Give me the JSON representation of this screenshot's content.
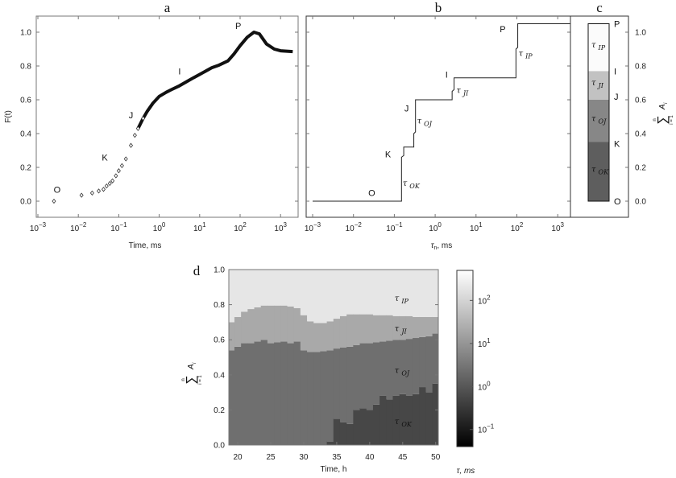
{
  "chart_data": [
    {
      "panel": "a",
      "type": "scatter",
      "title": "a",
      "xlabel": "Time, ms",
      "ylabel": "F(t)",
      "xscale": "log",
      "xlim": [
        0.00091,
        2900
      ],
      "ylim": [
        -0.1,
        1.1
      ],
      "x_tick_exponents": [
        -3,
        -2,
        -1,
        0,
        1,
        2,
        3
      ],
      "y_ticks": [
        "0.0",
        "0.2",
        "0.4",
        "0.6",
        "0.8",
        "1.0"
      ],
      "x": [
        0.0025,
        0.012,
        0.022,
        0.032,
        0.042,
        0.05,
        0.06,
        0.07,
        0.085,
        0.1,
        0.12,
        0.15,
        0.2,
        0.25,
        0.3,
        0.4,
        0.5,
        0.7,
        1,
        1.5,
        2,
        3,
        5,
        7,
        10,
        20,
        30,
        50,
        70,
        100,
        150,
        220,
        300,
        450,
        700,
        1000,
        2000
      ],
      "y": [
        0.0,
        0.035,
        0.048,
        0.06,
        0.07,
        0.09,
        0.105,
        0.12,
        0.15,
        0.18,
        0.21,
        0.25,
        0.33,
        0.39,
        0.43,
        0.49,
        0.53,
        0.58,
        0.62,
        0.645,
        0.66,
        0.68,
        0.71,
        0.73,
        0.75,
        0.79,
        0.805,
        0.83,
        0.87,
        0.92,
        0.97,
        1.0,
        0.99,
        0.93,
        0.9,
        0.89,
        0.885
      ],
      "annotations": [
        {
          "text": "O",
          "x": 0.003,
          "y": 0.05
        },
        {
          "text": "K",
          "x": 0.045,
          "y": 0.24
        },
        {
          "text": "J",
          "x": 0.2,
          "y": 0.49
        },
        {
          "text": "I",
          "x": 3.2,
          "y": 0.75
        },
        {
          "text": "P",
          "x": 90,
          "y": 1.02
        }
      ]
    },
    {
      "panel": "b",
      "type": "line",
      "title": "b",
      "xlabel": "τ",
      "xlabel_sub": "n",
      "xlabel_unit": ", ms",
      "xscale": "log",
      "xlim": [
        0.00069,
        2900
      ],
      "ylim": [
        -0.1,
        1.1
      ],
      "x_tick_exponents": [
        -3,
        -2,
        -1,
        0,
        1,
        2,
        3
      ],
      "step_x": [
        0.001,
        0.15,
        0.15,
        0.17,
        0.17,
        0.3,
        0.3,
        0.33,
        0.33,
        2.6,
        2.6,
        2.9,
        2.9,
        95,
        95,
        105,
        105,
        2000
      ],
      "step_y": [
        0.0,
        0.0,
        0.26,
        0.27,
        0.32,
        0.32,
        0.4,
        0.41,
        0.6,
        0.6,
        0.65,
        0.66,
        0.73,
        0.73,
        0.9,
        0.91,
        1.05,
        1.05
      ],
      "annotations": [
        {
          "text": "O",
          "x": 0.028,
          "y": 0.03
        },
        {
          "text": "K",
          "x": 0.07,
          "y": 0.26
        },
        {
          "text": "J",
          "x": 0.2,
          "y": 0.53
        },
        {
          "text": "I",
          "x": 1.9,
          "y": 0.73
        },
        {
          "text": "P",
          "x": 45,
          "y": 1.0
        }
      ],
      "tau_labels": [
        {
          "sub": "OK",
          "x": 0.16,
          "y": 0.09
        },
        {
          "sub": "OJ",
          "x": 0.36,
          "y": 0.46
        },
        {
          "sub": "JI",
          "x": 3.3,
          "y": 0.64
        },
        {
          "sub": "IP",
          "x": 110,
          "y": 0.86
        }
      ]
    },
    {
      "panel": "c",
      "type": "bar",
      "title": "c",
      "ylabel": "Σ A_i (i=1..n)",
      "ylabel_parts": {
        "sum": "∑",
        "top": "n",
        "bottom": "i = 1",
        "term": "A",
        "term_sub": "i"
      },
      "ylim": [
        -0.1,
        1.1
      ],
      "y_ticks": [
        "0.0",
        "0.2",
        "0.4",
        "0.6",
        "0.8",
        "1.0"
      ],
      "bands": [
        {
          "sub": "OK",
          "from": 0.0,
          "to": 0.35,
          "color": "#5e5e5e"
        },
        {
          "sub": "OJ",
          "from": 0.35,
          "to": 0.6,
          "color": "#878787"
        },
        {
          "sub": "JI",
          "from": 0.6,
          "to": 0.77,
          "color": "#c2c2c2"
        },
        {
          "sub": "IP",
          "from": 0.77,
          "to": 1.05,
          "color": "#fbfbfb"
        }
      ],
      "phase_labels": [
        {
          "text": "O",
          "y": 0.0
        },
        {
          "text": "K",
          "y": 0.34
        },
        {
          "text": "J",
          "y": 0.62
        },
        {
          "text": "I",
          "y": 0.77
        },
        {
          "text": "P",
          "y": 1.05
        }
      ]
    },
    {
      "panel": "d",
      "type": "heatmap",
      "title": "d",
      "xlabel": "Time, h",
      "ylabel_parts": {
        "sum": "∑",
        "top": "n",
        "bottom": "i = 1",
        "term": "A",
        "term_sub": "i"
      },
      "xlim": [
        18.65,
        50.4
      ],
      "ylim": [
        0,
        1
      ],
      "x_ticks": [
        20,
        25,
        30,
        35,
        40,
        45,
        50
      ],
      "y_ticks": [
        "0.0",
        "0.2",
        "0.4",
        "0.6",
        "0.8",
        "1.0"
      ],
      "time_h": [
        19,
        20,
        21,
        22,
        23,
        24,
        25,
        26,
        27,
        28,
        29,
        30,
        31,
        32,
        33,
        34,
        35,
        36,
        37,
        38,
        39,
        40,
        41,
        42,
        43,
        44,
        45,
        46,
        47,
        48,
        49,
        50
      ],
      "boundary_OK_OJ": [
        0,
        0,
        0,
        0,
        0,
        0,
        0,
        0,
        0,
        0,
        0,
        0,
        0,
        0,
        0,
        0.02,
        0.15,
        0.13,
        0.12,
        0.2,
        0.21,
        0.2,
        0.23,
        0.28,
        0.26,
        0.28,
        0.29,
        0.28,
        0.29,
        0.33,
        0.3,
        0.35
      ],
      "boundary_OJ_JI": [
        0.54,
        0.56,
        0.58,
        0.58,
        0.59,
        0.6,
        0.58,
        0.585,
        0.59,
        0.58,
        0.59,
        0.54,
        0.53,
        0.53,
        0.535,
        0.54,
        0.55,
        0.555,
        0.56,
        0.57,
        0.58,
        0.58,
        0.585,
        0.59,
        0.595,
        0.6,
        0.6,
        0.605,
        0.61,
        0.615,
        0.62,
        0.635
      ],
      "boundary_JI_IP": [
        0.7,
        0.73,
        0.76,
        0.775,
        0.785,
        0.795,
        0.795,
        0.795,
        0.795,
        0.79,
        0.78,
        0.74,
        0.705,
        0.695,
        0.695,
        0.705,
        0.72,
        0.735,
        0.745,
        0.745,
        0.745,
        0.745,
        0.74,
        0.74,
        0.74,
        0.735,
        0.735,
        0.735,
        0.73,
        0.73,
        0.73,
        0.73
      ],
      "band_colors": {
        "OK": "#474747",
        "OJ": "#6f6f6f",
        "JI": "#a9a9a9",
        "IP": "#e6e6e6"
      },
      "tau_labels": [
        {
          "sub": "IP",
          "x": 45,
          "y": 0.82
        },
        {
          "sub": "JI",
          "x": 45,
          "y": 0.65
        },
        {
          "sub": "OJ",
          "x": 45,
          "y": 0.41
        },
        {
          "sub": "OK",
          "x": 45,
          "y": 0.12
        }
      ],
      "colorbar": {
        "label": "τ, ms",
        "scale": "log",
        "range": [
          0.04,
          500
        ],
        "tick_exponents": [
          -1,
          0,
          1,
          2
        ],
        "colormap": "gray"
      }
    }
  ]
}
